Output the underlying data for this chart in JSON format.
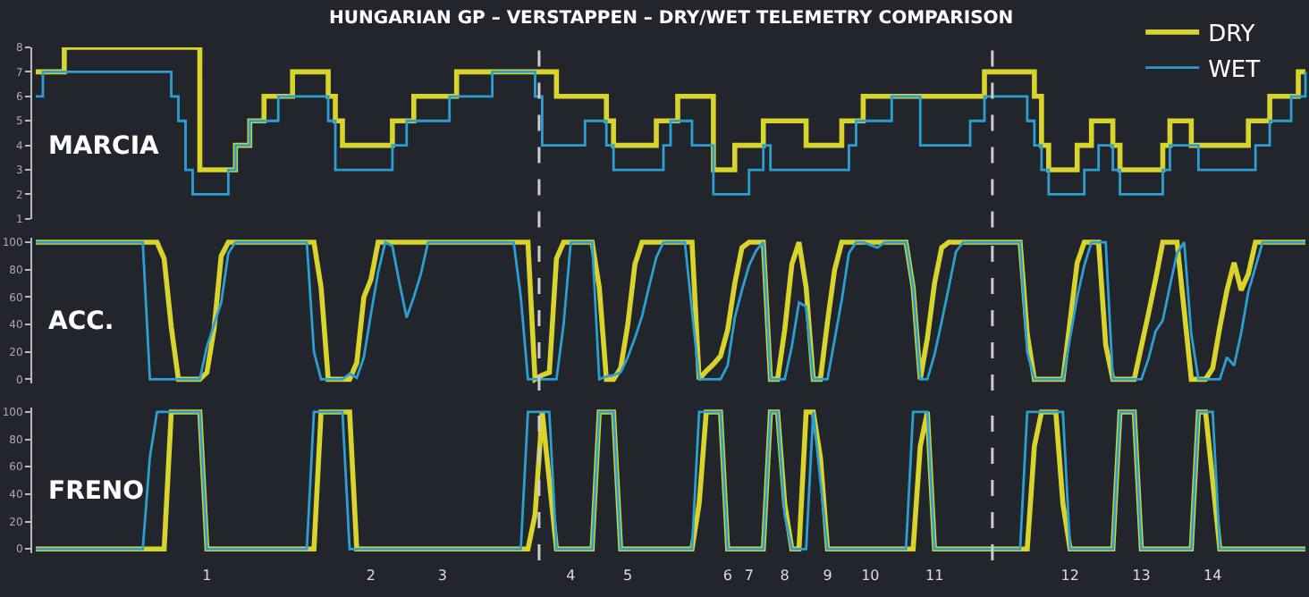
{
  "chart_data": [
    {
      "type": "step",
      "title": "HUNGARIAN GP – VERSTAPPEN – DRY/WET TELEMETRY COMPARISON",
      "ylabel": "MARCIA",
      "legend": "top right",
      "ylim": [
        1,
        8
      ],
      "yticks": [
        1,
        2,
        3,
        4,
        5,
        6,
        7,
        8
      ],
      "tick_labels": "y",
      "grid": false,
      "categories": [
        null,
        null,
        null,
        null,
        null,
        null,
        null,
        null,
        null,
        null,
        null,
        null,
        null,
        null,
        null,
        null,
        null,
        null,
        null,
        null,
        null,
        null,
        null,
        null,
        "1",
        null,
        null,
        null,
        null,
        null,
        null,
        null,
        null,
        null,
        null,
        null,
        null,
        null,
        null,
        null,
        null,
        null,
        null,
        null,
        null,
        null,
        null,
        "2",
        null,
        null,
        null,
        null,
        null,
        null,
        null,
        null,
        null,
        "3",
        null,
        null,
        null,
        null,
        null,
        null,
        null,
        null,
        null,
        null,
        null,
        null,
        null,
        null,
        null,
        null,
        null,
        "4",
        null,
        null,
        null,
        null,
        null,
        null,
        null,
        "5",
        null,
        null,
        null,
        null,
        null,
        null,
        null,
        null,
        null,
        null,
        null,
        null,
        null,
        "6",
        null,
        null,
        "7",
        null,
        null,
        null,
        null,
        "8",
        null,
        null,
        null,
        null,
        null,
        "9",
        null,
        null,
        null,
        null,
        null,
        "10",
        null,
        null,
        null,
        null,
        null,
        null,
        null,
        null,
        "11",
        null,
        null,
        null,
        null,
        null,
        null,
        null,
        null,
        null,
        null,
        null,
        null,
        null,
        null,
        null,
        null,
        null,
        null,
        "12",
        null,
        null,
        null,
        null,
        null,
        null,
        null,
        null,
        null,
        "13",
        null,
        null,
        null,
        null,
        null,
        null,
        null,
        null,
        null,
        "14",
        null,
        null,
        null,
        null,
        null,
        null,
        null,
        null,
        null,
        null,
        null,
        null,
        null
      ],
      "series": [
        {
          "name": "DRY",
          "color": "#d8d42c",
          "values": [
            7,
            7,
            7,
            7,
            8,
            8,
            8,
            8,
            8,
            8,
            8,
            8,
            8,
            8,
            8,
            8,
            8,
            8,
            8,
            8,
            8,
            8,
            8,
            3,
            3,
            3,
            3,
            3,
            4,
            4,
            5,
            5,
            6,
            6,
            6,
            6,
            7,
            7,
            7,
            7,
            7,
            6,
            5,
            4,
            4,
            4,
            4,
            4,
            4,
            4,
            5,
            5,
            5,
            6,
            6,
            6,
            6,
            6,
            6,
            7,
            7,
            7,
            7,
            7,
            7,
            7,
            7,
            7,
            7,
            7,
            7,
            7,
            7,
            6,
            6,
            6,
            6,
            6,
            6,
            6,
            5,
            4,
            4,
            4,
            4,
            4,
            4,
            5,
            5,
            5,
            6,
            6,
            6,
            6,
            6,
            3,
            3,
            3,
            4,
            4,
            4,
            4,
            5,
            5,
            5,
            5,
            5,
            5,
            4,
            4,
            4,
            4,
            4,
            5,
            5,
            5,
            6,
            6,
            6,
            6,
            6,
            6,
            6,
            6,
            6,
            6,
            6,
            6,
            6,
            6,
            6,
            6,
            6,
            7,
            7,
            7,
            7,
            7,
            7,
            7,
            6,
            4,
            3,
            3,
            3,
            3,
            4,
            4,
            5,
            5,
            5,
            4,
            3,
            3,
            3,
            3,
            3,
            3,
            4,
            5,
            5,
            5,
            4,
            4,
            4,
            4,
            4,
            4,
            4,
            4,
            5,
            5,
            5,
            6,
            6,
            6,
            6,
            7,
            7
          ]
        },
        {
          "name": "WET",
          "color": "#2b9fd2",
          "values": [
            6,
            7,
            7,
            7,
            7,
            7,
            7,
            7,
            7,
            7,
            7,
            7,
            7,
            7,
            7,
            7,
            7,
            7,
            7,
            6,
            5,
            3,
            2,
            2,
            2,
            2,
            2,
            3,
            4,
            4,
            5,
            5,
            5,
            5,
            6,
            6,
            6,
            6,
            6,
            6,
            6,
            5,
            3,
            3,
            3,
            3,
            3,
            3,
            3,
            3,
            4,
            4,
            5,
            5,
            5,
            5,
            5,
            5,
            6,
            6,
            6,
            6,
            6,
            6,
            7,
            7,
            7,
            7,
            7,
            7,
            6,
            4,
            4,
            4,
            4,
            4,
            4,
            5,
            5,
            5,
            4,
            3,
            3,
            3,
            3,
            3,
            3,
            3,
            4,
            5,
            5,
            5,
            4,
            4,
            4,
            2,
            2,
            2,
            2,
            2,
            3,
            3,
            4,
            3,
            3,
            3,
            3,
            3,
            3,
            3,
            3,
            3,
            3,
            3,
            4,
            5,
            5,
            5,
            5,
            5,
            6,
            6,
            6,
            6,
            4,
            4,
            4,
            4,
            4,
            4,
            4,
            5,
            5,
            6,
            6,
            6,
            6,
            6,
            6,
            5,
            4,
            3,
            2,
            2,
            2,
            2,
            2,
            3,
            3,
            4,
            4,
            3,
            2,
            2,
            2,
            2,
            2,
            2,
            3,
            4,
            4,
            4,
            4,
            3,
            3,
            3,
            3,
            3,
            3,
            3,
            3,
            4,
            4,
            5,
            5,
            5,
            6,
            6,
            7
          ]
        }
      ]
    },
    {
      "type": "line",
      "ylabel": "ACC.",
      "ylim": [
        -3,
        103
      ],
      "yticks": [
        0,
        20,
        40,
        60,
        80,
        100
      ],
      "tick_labels": "y",
      "grid": false,
      "categories": [
        null,
        null,
        null,
        null,
        null,
        null,
        null,
        null,
        null,
        null,
        null,
        null,
        null,
        null,
        null,
        null,
        null,
        null,
        null,
        null,
        null,
        null,
        null,
        null,
        "1",
        null,
        null,
        null,
        null,
        null,
        null,
        null,
        null,
        null,
        null,
        null,
        null,
        null,
        null,
        null,
        null,
        null,
        null,
        null,
        null,
        null,
        null,
        "2",
        null,
        null,
        null,
        null,
        null,
        null,
        null,
        null,
        null,
        "3",
        null,
        null,
        null,
        null,
        null,
        null,
        null,
        null,
        null,
        null,
        null,
        null,
        null,
        null,
        null,
        null,
        null,
        "4",
        null,
        null,
        null,
        null,
        null,
        null,
        null,
        "5",
        null,
        null,
        null,
        null,
        null,
        null,
        null,
        null,
        null,
        null,
        null,
        null,
        null,
        "6",
        null,
        null,
        "7",
        null,
        null,
        null,
        null,
        "8",
        null,
        null,
        null,
        null,
        null,
        "9",
        null,
        null,
        null,
        null,
        null,
        "10",
        null,
        null,
        null,
        null,
        null,
        null,
        null,
        null,
        "11",
        null,
        null,
        null,
        null,
        null,
        null,
        null,
        null,
        null,
        null,
        null,
        null,
        null,
        null,
        null,
        null,
        null,
        null,
        "12",
        null,
        null,
        null,
        null,
        null,
        null,
        null,
        null,
        null,
        "13",
        null,
        null,
        null,
        null,
        null,
        null,
        null,
        null,
        null,
        "14",
        null,
        null,
        null,
        null,
        null,
        null,
        null,
        null,
        null,
        null,
        null,
        null,
        null
      ],
      "series": [
        {
          "color": "#d8d42c",
          "values": [
            100,
            100,
            100,
            100,
            100,
            100,
            100,
            100,
            100,
            100,
            100,
            100,
            100,
            100,
            100,
            100,
            100,
            100,
            88,
            38,
            0,
            0,
            0,
            0,
            5,
            37,
            90,
            100,
            100,
            100,
            100,
            100,
            100,
            100,
            100,
            100,
            100,
            100,
            100,
            100,
            67,
            0,
            0,
            0,
            0,
            12,
            60,
            73,
            100,
            100,
            100,
            100,
            100,
            100,
            100,
            100,
            100,
            100,
            100,
            100,
            100,
            100,
            100,
            100,
            100,
            100,
            100,
            100,
            100,
            100,
            0,
            3,
            5,
            88,
            100,
            100,
            100,
            100,
            100,
            67,
            0,
            0,
            8,
            40,
            84,
            100,
            100,
            100,
            100,
            100,
            100,
            100,
            100,
            0,
            6,
            11,
            17,
            36,
            70,
            96,
            100,
            100,
            100,
            0,
            0,
            36,
            84,
            100,
            67,
            0,
            0,
            42,
            80,
            100,
            100,
            100,
            100,
            100,
            100,
            100,
            100,
            100,
            100,
            67,
            0,
            30,
            70,
            96,
            100,
            100,
            100,
            100,
            100,
            100,
            100,
            100,
            100,
            100,
            100,
            33,
            0,
            0,
            0,
            0,
            0,
            42,
            85,
            100,
            100,
            100,
            25,
            0,
            0,
            0,
            0,
            24,
            48,
            73,
            100,
            100,
            100,
            50,
            0,
            0,
            0,
            8,
            38,
            65,
            85,
            65,
            77,
            100,
            100,
            100,
            100,
            100,
            100,
            100,
            100
          ]
        },
        {
          "color": "#2b9fd2",
          "values": [
            100,
            100,
            100,
            100,
            100,
            100,
            100,
            100,
            100,
            100,
            100,
            100,
            100,
            100,
            100,
            100,
            0,
            0,
            0,
            0,
            0,
            0,
            0,
            0,
            24,
            40,
            56,
            92,
            100,
            100,
            100,
            100,
            100,
            100,
            100,
            100,
            100,
            100,
            100,
            20,
            0,
            0,
            0,
            0,
            4,
            1,
            16,
            48,
            78,
            100,
            97,
            70,
            45,
            60,
            77,
            100,
            100,
            100,
            100,
            100,
            100,
            100,
            100,
            100,
            100,
            100,
            100,
            100,
            60,
            0,
            0,
            0,
            0,
            0,
            40,
            100,
            100,
            100,
            100,
            0,
            2,
            3,
            5,
            16,
            30,
            46,
            68,
            89,
            100,
            100,
            100,
            100,
            50,
            0,
            0,
            0,
            0,
            10,
            45,
            65,
            83,
            94,
            100,
            0,
            0,
            0,
            24,
            56,
            53,
            0,
            0,
            0,
            29,
            58,
            92,
            100,
            100,
            98,
            96,
            100,
            100,
            100,
            100,
            67,
            0,
            0,
            18,
            42,
            67,
            93,
            100,
            100,
            100,
            100,
            100,
            100,
            100,
            100,
            100,
            20,
            0,
            0,
            0,
            0,
            0,
            30,
            60,
            83,
            100,
            100,
            100,
            0,
            0,
            0,
            0,
            0,
            15,
            35,
            43,
            68,
            92,
            100,
            33,
            0,
            0,
            0,
            0,
            16,
            10,
            34,
            64,
            82,
            100,
            100,
            100,
            100,
            100,
            100,
            100
          ]
        }
      ]
    },
    {
      "type": "line",
      "ylabel": "FRENO",
      "ylim": [
        -3,
        103
      ],
      "yticks": [
        0,
        20,
        40,
        60,
        80,
        100
      ],
      "grid": false,
      "categories": [
        null,
        null,
        null,
        null,
        null,
        null,
        null,
        null,
        null,
        null,
        null,
        null,
        null,
        null,
        null,
        null,
        null,
        null,
        null,
        null,
        null,
        null,
        null,
        null,
        "1",
        null,
        null,
        null,
        null,
        null,
        null,
        null,
        null,
        null,
        null,
        null,
        null,
        null,
        null,
        null,
        null,
        null,
        null,
        null,
        null,
        null,
        null,
        "2",
        null,
        null,
        null,
        null,
        null,
        null,
        null,
        null,
        null,
        "3",
        null,
        null,
        null,
        null,
        null,
        null,
        null,
        null,
        null,
        null,
        null,
        null,
        null,
        null,
        null,
        null,
        null,
        "4",
        null,
        null,
        null,
        null,
        null,
        null,
        null,
        "5",
        null,
        null,
        null,
        null,
        null,
        null,
        null,
        null,
        null,
        null,
        null,
        null,
        null,
        "6",
        null,
        null,
        "7",
        null,
        null,
        null,
        null,
        "8",
        null,
        null,
        null,
        null,
        null,
        "9",
        null,
        null,
        null,
        null,
        null,
        "10",
        null,
        null,
        null,
        null,
        null,
        null,
        null,
        null,
        "11",
        null,
        null,
        null,
        null,
        null,
        null,
        null,
        null,
        null,
        null,
        null,
        null,
        null,
        null,
        null,
        null,
        null,
        null,
        "12",
        null,
        null,
        null,
        null,
        null,
        null,
        null,
        null,
        null,
        "13",
        null,
        null,
        null,
        null,
        null,
        null,
        null,
        null,
        null,
        "14",
        null,
        null,
        null,
        null,
        null,
        null,
        null,
        null,
        null,
        null,
        null,
        null,
        null
      ],
      "series": [
        {
          "color": "#d8d42c",
          "values": [
            0,
            0,
            0,
            0,
            0,
            0,
            0,
            0,
            0,
            0,
            0,
            0,
            0,
            0,
            0,
            0,
            0,
            0,
            0,
            100,
            100,
            100,
            100,
            100,
            0,
            0,
            0,
            0,
            0,
            0,
            0,
            0,
            0,
            0,
            0,
            0,
            0,
            0,
            0,
            0,
            100,
            100,
            100,
            100,
            100,
            0,
            0,
            0,
            0,
            0,
            0,
            0,
            0,
            0,
            0,
            0,
            0,
            0,
            0,
            0,
            0,
            0,
            0,
            0,
            0,
            0,
            0,
            0,
            0,
            0,
            25,
            100,
            50,
            0,
            0,
            0,
            0,
            0,
            0,
            100,
            100,
            100,
            0,
            0,
            0,
            0,
            0,
            0,
            0,
            0,
            0,
            0,
            0,
            33,
            100,
            100,
            100,
            0,
            0,
            0,
            0,
            0,
            0,
            100,
            100,
            33,
            0,
            0,
            100,
            100,
            67,
            0,
            0,
            0,
            0,
            0,
            0,
            0,
            0,
            0,
            0,
            0,
            0,
            0,
            75,
            100,
            0,
            0,
            0,
            0,
            0,
            0,
            0,
            0,
            0,
            0,
            0,
            0,
            0,
            0,
            75,
            100,
            100,
            100,
            33,
            0,
            0,
            0,
            0,
            0,
            0,
            0,
            100,
            100,
            100,
            0,
            0,
            0,
            0,
            0,
            0,
            0,
            0,
            100,
            100,
            50,
            0,
            0,
            0,
            0,
            0,
            0,
            0,
            0,
            0,
            0,
            0,
            0,
            0
          ]
        },
        {
          "color": "#2b9fd2",
          "values": [
            0,
            0,
            0,
            0,
            0,
            0,
            0,
            0,
            0,
            0,
            0,
            0,
            0,
            0,
            0,
            0,
            67,
            100,
            100,
            100,
            100,
            100,
            100,
            100,
            0,
            0,
            0,
            0,
            0,
            0,
            0,
            0,
            0,
            0,
            0,
            0,
            0,
            0,
            0,
            100,
            100,
            100,
            100,
            100,
            0,
            0,
            0,
            0,
            0,
            0,
            0,
            0,
            0,
            0,
            0,
            0,
            0,
            0,
            0,
            0,
            0,
            0,
            0,
            0,
            0,
            0,
            0,
            0,
            0,
            100,
            100,
            100,
            100,
            0,
            0,
            0,
            0,
            0,
            0,
            100,
            100,
            100,
            0,
            0,
            0,
            0,
            0,
            0,
            0,
            0,
            0,
            0,
            0,
            100,
            100,
            100,
            100,
            0,
            0,
            0,
            0,
            0,
            0,
            100,
            100,
            25,
            0,
            0,
            0,
            100,
            50,
            0,
            0,
            0,
            0,
            0,
            0,
            0,
            0,
            0,
            0,
            0,
            0,
            100,
            100,
            100,
            0,
            0,
            0,
            0,
            0,
            0,
            0,
            0,
            0,
            0,
            0,
            0,
            0,
            100,
            100,
            100,
            100,
            100,
            100,
            0,
            0,
            0,
            0,
            0,
            0,
            0,
            100,
            100,
            100,
            0,
            0,
            0,
            0,
            0,
            0,
            0,
            0,
            100,
            100,
            100,
            0,
            0,
            0,
            0,
            0,
            0,
            0,
            0,
            0,
            0,
            0,
            0,
            0
          ]
        }
      ]
    }
  ]
}
